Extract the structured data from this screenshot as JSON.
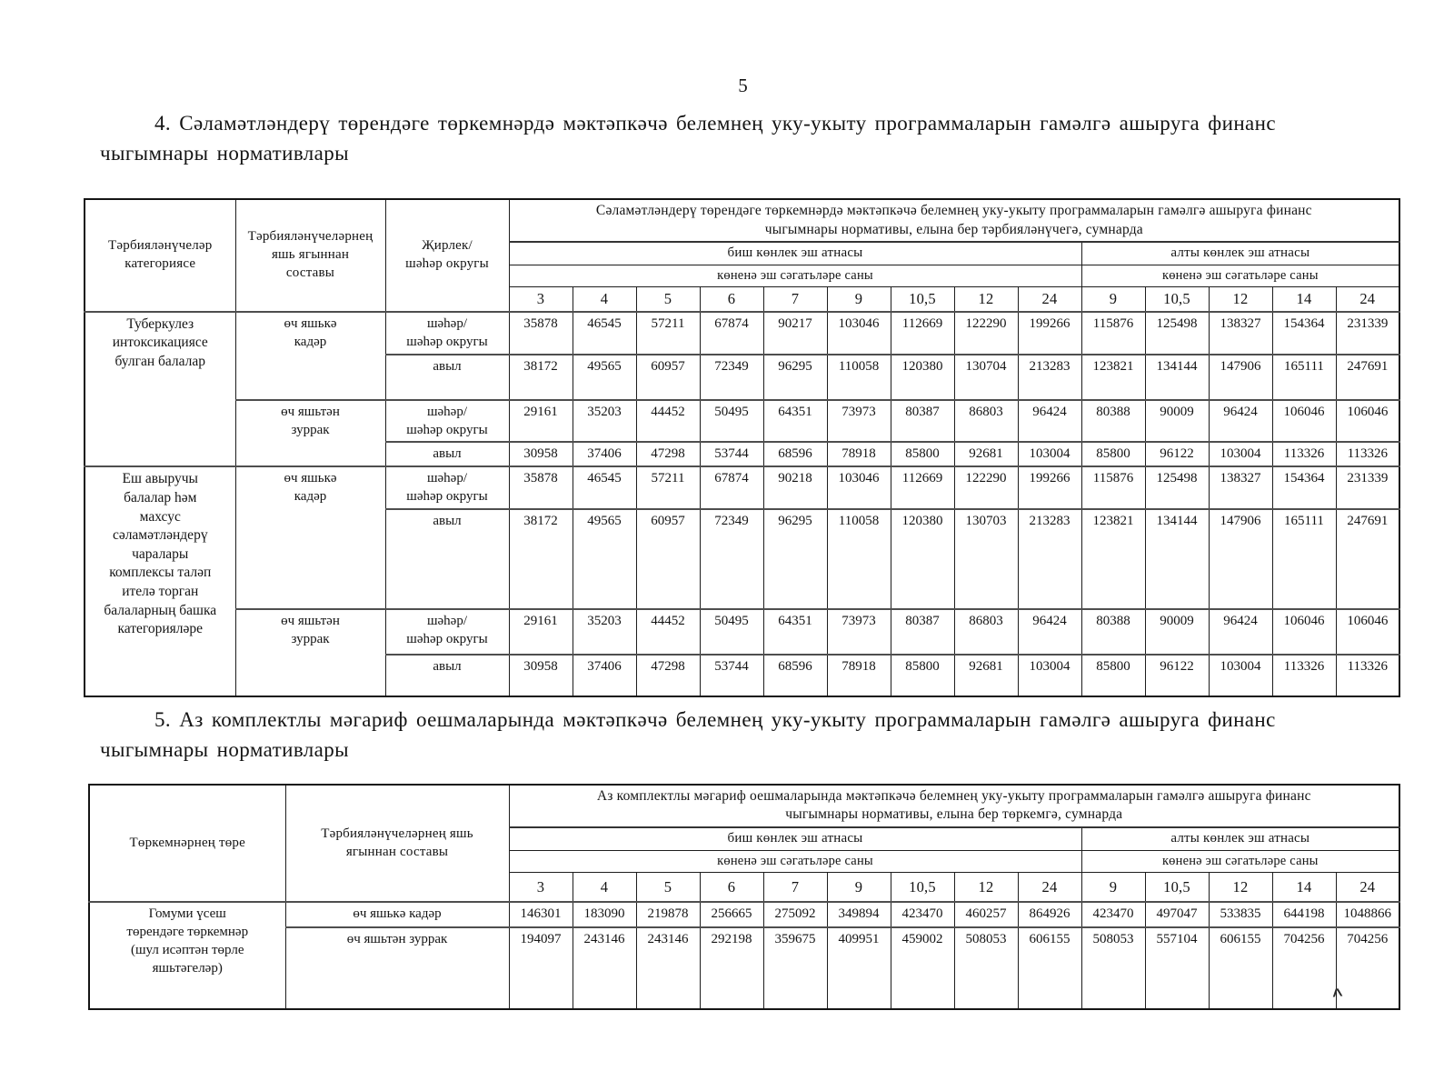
{
  "page": {
    "number": "5"
  },
  "sections": {
    "s4": "4. Сәламәтләндерү төрендәге төркемнәрдә мәктәпкәчә белемнең уку-укыту программаларын гамәлгә ашыруга финанс\nчыгымнары нормативлары",
    "s5": "5. Аз комплектлы мәгариф оешмаларында мәктәпкәчә белемнең уку-укыту программаларын гамәлгә ашыруга финанс\nчыгымнары нормативлары"
  },
  "t1": {
    "headers": {
      "category": "Тәрбияләнүчеләр\nкатегориясе",
      "age": "Тәрбияләнүчеләрнең\nяшь ягыннан\nсоставы",
      "locality": "Җирлек/\nшәһәр округы",
      "norm": "Сәламәтләндерү төрендәге төркемнәрдә мәктәпкәчә белемнең уку-укыту программаларын гамәлгә ашыруга финанс\nчыгымнары нормативы, елына бер тәрбияләнүчегә, сумнарда",
      "five_day": "биш көнлек эш атнасы",
      "six_day": "алты көнлек эш атнасы",
      "hours": "көненә эш сәгатьләре саны",
      "cols": [
        "3",
        "4",
        "5",
        "6",
        "7",
        "9",
        "10,5",
        "12",
        "24",
        "9",
        "10,5",
        "12",
        "14",
        "24"
      ]
    },
    "blocks": [
      {
        "category": "Туберкулез\nинтоксикациясе\nбулган балалар",
        "ages": [
          {
            "label": "өч яшькә\nкадәр",
            "rows": [
              {
                "locality": "шәһәр/\nшәһәр округы",
                "values": [
                  "35878",
                  "46545",
                  "57211",
                  "67874",
                  "90217",
                  "103046",
                  "112669",
                  "122290",
                  "199266",
                  "115876",
                  "125498",
                  "138327",
                  "154364",
                  "231339"
                ]
              },
              {
                "locality": "авыл",
                "values": [
                  "38172",
                  "49565",
                  "60957",
                  "72349",
                  "96295",
                  "110058",
                  "120380",
                  "130704",
                  "213283",
                  "123821",
                  "134144",
                  "147906",
                  "165111",
                  "247691"
                ]
              }
            ]
          },
          {
            "label": "өч яшьтән\nзуррак",
            "rows": [
              {
                "locality": "шәһәр/\nшәһәр округы",
                "values": [
                  "29161",
                  "35203",
                  "44452",
                  "50495",
                  "64351",
                  "73973",
                  "80387",
                  "86803",
                  "96424",
                  "80388",
                  "90009",
                  "96424",
                  "106046",
                  "106046"
                ]
              },
              {
                "locality": "авыл",
                "values": [
                  "30958",
                  "37406",
                  "47298",
                  "53744",
                  "68596",
                  "78918",
                  "85800",
                  "92681",
                  "103004",
                  "85800",
                  "96122",
                  "103004",
                  "113326",
                  "113326"
                ]
              }
            ]
          }
        ]
      },
      {
        "category": "Еш авыручы\nбалалар һәм\nмахсус\nсәламәтләндерү\nчаралары\nкомплексы таләп\nителә торган\nбалаларның башка\nкатегорияләре",
        "ages": [
          {
            "label": "өч яшькә\nкадәр",
            "rows": [
              {
                "locality": "шәһәр/\nшәһәр округы",
                "values": [
                  "35878",
                  "46545",
                  "57211",
                  "67874",
                  "90218",
                  "103046",
                  "112669",
                  "122290",
                  "199266",
                  "115876",
                  "125498",
                  "138327",
                  "154364",
                  "231339"
                ]
              },
              {
                "locality": "авыл",
                "values": [
                  "38172",
                  "49565",
                  "60957",
                  "72349",
                  "96295",
                  "110058",
                  "120380",
                  "130703",
                  "213283",
                  "123821",
                  "134144",
                  "147906",
                  "165111",
                  "247691"
                ]
              }
            ]
          },
          {
            "label": "өч яшьтән\nзуррак",
            "rows": [
              {
                "locality": "шәһәр/\nшәһәр округы",
                "values": [
                  "29161",
                  "35203",
                  "44452",
                  "50495",
                  "64351",
                  "73973",
                  "80387",
                  "86803",
                  "96424",
                  "80388",
                  "90009",
                  "96424",
                  "106046",
                  "106046"
                ]
              },
              {
                "locality": "авыл",
                "values": [
                  "30958",
                  "37406",
                  "47298",
                  "53744",
                  "68596",
                  "78918",
                  "85800",
                  "92681",
                  "103004",
                  "85800",
                  "96122",
                  "103004",
                  "113326",
                  "113326"
                ]
              }
            ]
          }
        ]
      }
    ]
  },
  "t2": {
    "headers": {
      "type": "Төркемнәрнең төре",
      "age": "Тәрбияләнүчеләрнең яшь\nягыннан составы",
      "norm": "Аз комплектлы мәгариф оешмаларында  мәктәпкәчә белемнең уку-укыту программаларын гамәлгә ашыруга финанс\nчыгымнары нормативы, елына бер төркемгә, сумнарда",
      "five_day": "биш көнлек эш атнасы",
      "six_day": "алты көнлек эш атнасы",
      "hours": "көненә эш сәгатьләре саны",
      "cols": [
        "3",
        "4",
        "5",
        "6",
        "7",
        "9",
        "10,5",
        "12",
        "24",
        "9",
        "10,5",
        "12",
        "14",
        "24"
      ]
    },
    "group": "Гомуми үсеш\nтөрендәге төркемнәр\n(шул исәптән төрле\nяшьтәгеләр)",
    "rows": [
      {
        "age": "өч яшькә кадәр",
        "values": [
          "146301",
          "183090",
          "219878",
          "256665",
          "275092",
          "349894",
          "423470",
          "460257",
          "864926",
          "423470",
          "497047",
          "533835",
          "644198",
          "1048866"
        ]
      },
      {
        "age": "өч яшьтән зуррак",
        "values": [
          "194097",
          "243146",
          "243146",
          "292198",
          "359675",
          "409951",
          "459002",
          "508053",
          "606155",
          "508053",
          "557104",
          "606155",
          "704256",
          "704256"
        ]
      }
    ]
  },
  "artifact": {
    "mark": "∧"
  }
}
